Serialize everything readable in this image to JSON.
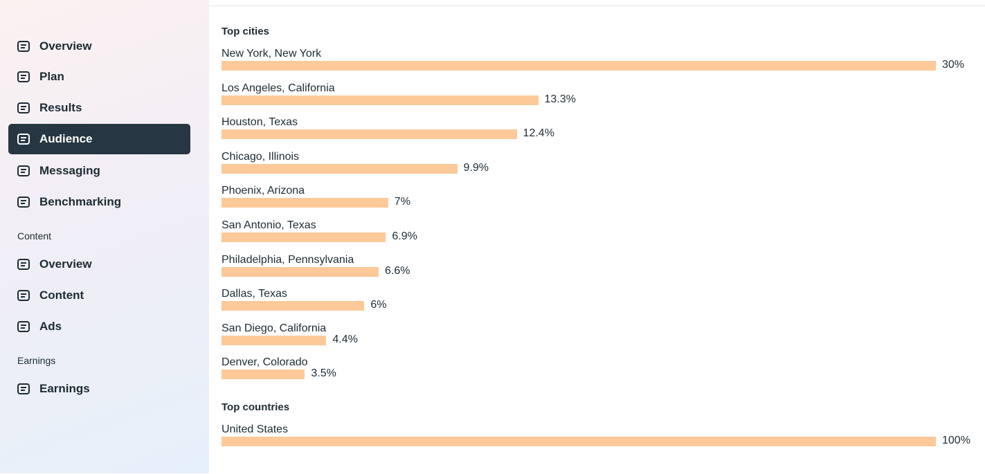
{
  "sidebar": {
    "items": [
      "Overview",
      "Plan",
      "Results",
      "Audience",
      "Messaging",
      "Benchmarking"
    ],
    "active": "Audience",
    "sections": [
      {
        "heading": "Content",
        "items": [
          "Overview",
          "Content",
          "Ads"
        ]
      },
      {
        "heading": "Earnings",
        "items": [
          "Earnings"
        ]
      }
    ]
  },
  "chart_data": [
    {
      "type": "bar",
      "title": "Top cities",
      "color": "#fdc999",
      "categories": [
        "New York, New York",
        "Los Angeles, California",
        "Houston, Texas",
        "Chicago, Illinois",
        "Phoenix, Arizona",
        "San Antonio, Texas",
        "Philadelphia, Pennsylvania",
        "Dallas, Texas",
        "San Diego, California",
        "Denver, Colorado"
      ],
      "values": [
        30,
        13.3,
        12.4,
        9.9,
        7,
        6.9,
        6.6,
        6,
        4.4,
        3.5
      ],
      "value_labels": [
        "30%",
        "13.3%",
        "12.4%",
        "9.9%",
        "7%",
        "6.9%",
        "6.6%",
        "6%",
        "4.4%",
        "3.5%"
      ]
    },
    {
      "type": "bar",
      "title": "Top countries",
      "color": "#fdc999",
      "categories": [
        "United States"
      ],
      "values": [
        100
      ],
      "value_labels": [
        "100%"
      ]
    }
  ]
}
